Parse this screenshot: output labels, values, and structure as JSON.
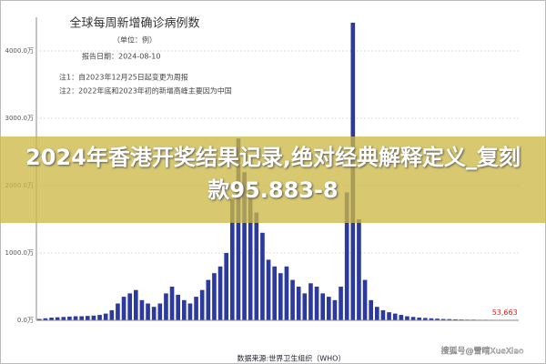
{
  "chart_data": {
    "type": "bar",
    "title": "全球每周新增确诊病例数",
    "subtitle": "（单位：例）",
    "report_date": "报告日期：2024-08-10",
    "notes": [
      "注1：自2023年12月25日起变更为周报",
      "注2：2022年底和2023年初的新增高峰主要因为中国"
    ],
    "source": "数据来源:世界卫生组织（WHO）",
    "overlay_title": "2024年香港开奖结果记录,绝对经典解释定义_复刻款95.883-8",
    "watermark": "搜狐号@雪晴XueXiao",
    "color": "#2b3a9c",
    "categories": [
      null,
      null,
      null,
      null,
      null,
      null,
      null,
      null,
      null,
      null,
      null,
      null,
      null,
      null,
      null,
      null,
      null,
      null,
      null,
      null,
      null,
      null,
      null,
      null,
      null,
      null,
      null,
      null,
      null,
      null,
      null,
      null,
      null,
      null,
      null,
      null,
      null,
      null,
      null,
      null,
      null,
      null,
      null,
      null,
      null,
      null,
      null,
      null,
      null,
      null,
      null,
      null,
      null,
      null,
      null,
      null,
      null,
      null,
      null,
      null,
      null,
      null,
      null,
      null,
      null,
      null,
      null,
      null,
      null,
      null,
      null,
      null,
      null,
      null,
      null,
      null,
      null,
      null,
      null,
      null
    ],
    "values": [
      20,
      30,
      40,
      45,
      50,
      55,
      60,
      60,
      65,
      70,
      80,
      100,
      150,
      250,
      350,
      400,
      450,
      300,
      250,
      200,
      250,
      400,
      500,
      380,
      300,
      250,
      350,
      450,
      600,
      700,
      800,
      1000,
      1800,
      2700,
      2200,
      1900,
      1600,
      1300,
      900,
      800,
      700,
      800,
      600,
      500,
      400,
      550,
      500,
      400,
      350,
      300,
      500,
      1900,
      4420,
      1500,
      600,
      300,
      200,
      150,
      120,
      100,
      80,
      60,
      50,
      40,
      35,
      30,
      25,
      20,
      18,
      15,
      12,
      10,
      10,
      8,
      8,
      7,
      6,
      6,
      5,
      5.3663
    ],
    "value_labels": [
      null,
      null,
      null,
      null,
      null,
      null,
      null,
      null,
      null,
      null,
      null,
      null,
      null,
      null,
      null,
      null,
      null,
      null,
      null,
      null,
      null,
      null,
      null,
      null,
      null,
      null,
      null,
      null,
      null,
      null,
      null,
      null,
      null,
      null,
      null,
      null,
      null,
      null,
      null,
      null,
      null,
      null,
      null,
      null,
      null,
      null,
      null,
      null,
      null,
      null,
      null,
      null,
      null,
      null,
      null,
      null,
      null,
      null,
      null,
      null,
      null,
      null,
      null,
      null,
      null,
      null,
      null,
      null,
      null,
      null,
      null,
      null,
      null,
      null,
      null,
      null,
      null,
      null,
      null,
      "53,663"
    ],
    "ylim": [
      0,
      4500
    ],
    "yticks": [
      {
        "value": 0,
        "label": "0.0万"
      },
      {
        "value": 1000,
        "label": "1000.0万"
      },
      {
        "value": 2000,
        "label": "2000.0万"
      },
      {
        "value": 3000,
        "label": "3000.0万"
      },
      {
        "value": 4000,
        "label": "4000.0万"
      }
    ],
    "grid": true
  }
}
